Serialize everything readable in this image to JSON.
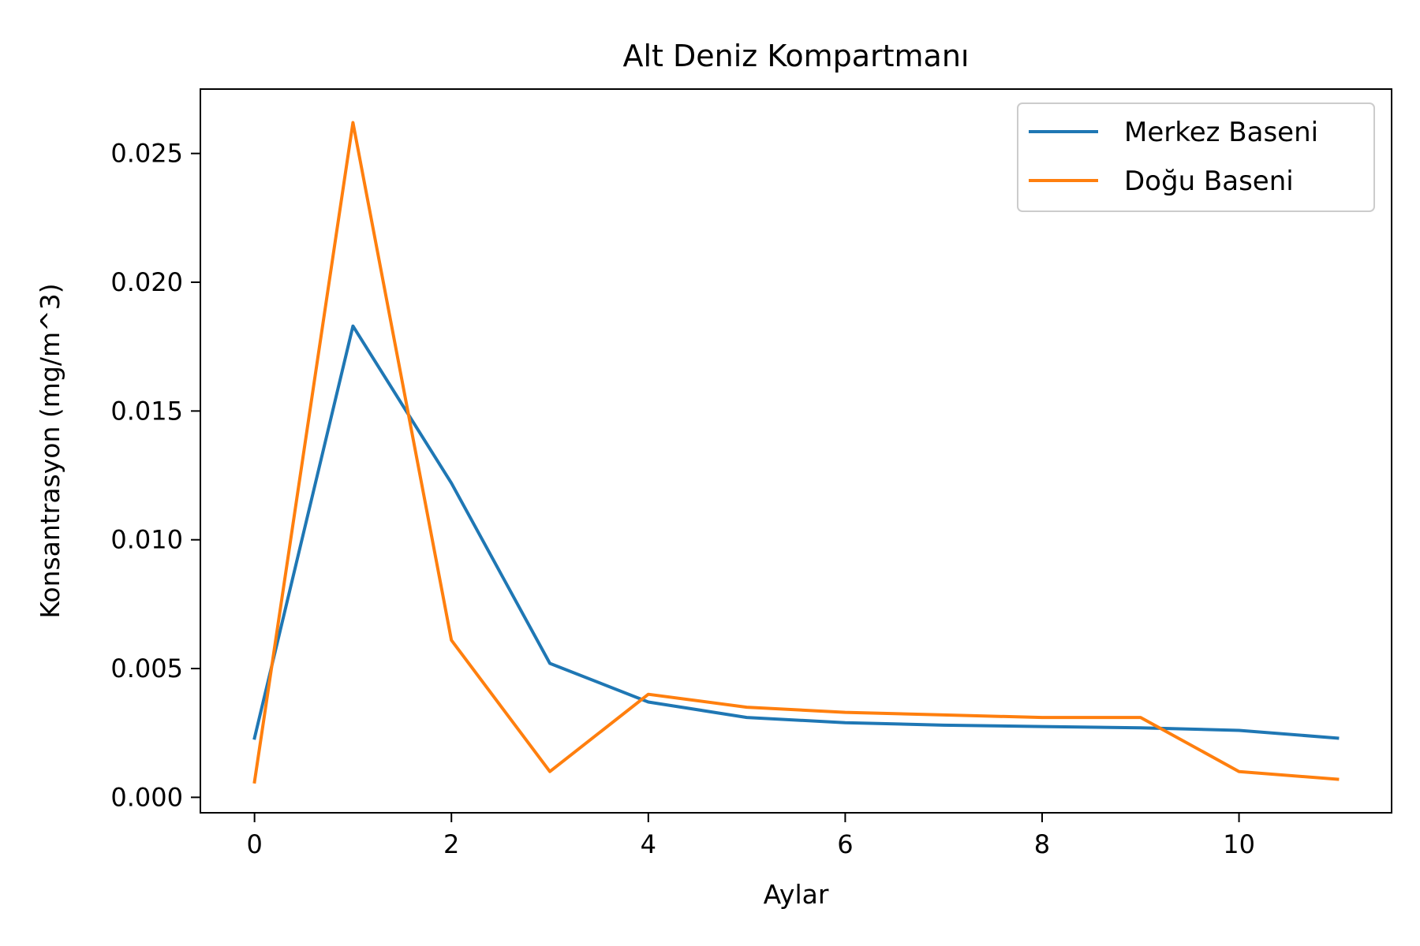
{
  "chart_data": {
    "type": "line",
    "title": "Alt Deniz Kompartmanı",
    "xlabel": "Aylar",
    "ylabel": "Konsantrasyon (mg/m^3)",
    "x": [
      0,
      1,
      2,
      3,
      4,
      5,
      6,
      7,
      8,
      9,
      10,
      11
    ],
    "xlim": [
      -0.55,
      11.55
    ],
    "ylim": [
      -0.0006,
      0.0275
    ],
    "x_ticks": [
      0,
      2,
      4,
      6,
      8,
      10
    ],
    "x_tick_labels": [
      "0",
      "2",
      "4",
      "6",
      "8",
      "10"
    ],
    "y_ticks": [
      0.0,
      0.005,
      0.01,
      0.015,
      0.02,
      0.025
    ],
    "y_tick_labels": [
      "0.000",
      "0.005",
      "0.010",
      "0.015",
      "0.020",
      "0.025"
    ],
    "grid": false,
    "legend_position": "top-right",
    "series": [
      {
        "name": "Merkez Baseni",
        "color": "#1f77b4",
        "values": [
          0.0023,
          0.0183,
          0.0122,
          0.0052,
          0.0037,
          0.0031,
          0.0029,
          0.0028,
          0.00275,
          0.0027,
          0.0026,
          0.0023
        ]
      },
      {
        "name": "Doğu Baseni",
        "color": "#ff7f0e",
        "values": [
          0.0006,
          0.0262,
          0.0061,
          0.001,
          0.004,
          0.0035,
          0.0033,
          0.0032,
          0.0031,
          0.0031,
          0.001,
          0.0007
        ]
      }
    ]
  }
}
